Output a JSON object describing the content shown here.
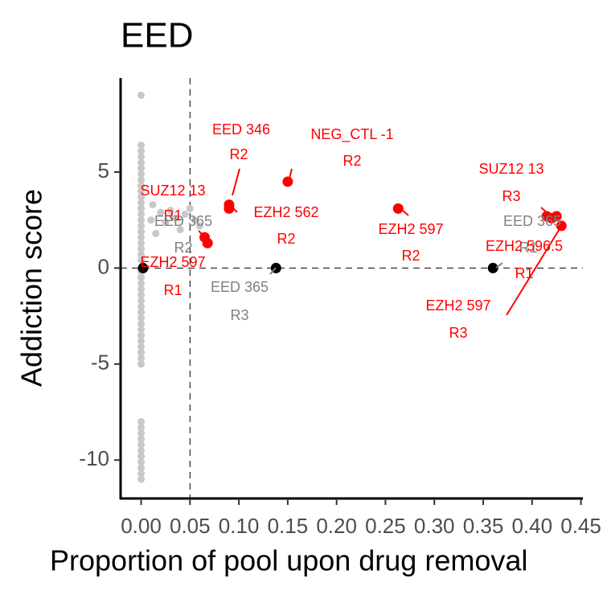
{
  "chart_data": {
    "type": "scatter",
    "title": "EED",
    "x_label": "Proportion of pool upon drug removal",
    "y_label": "Addiction score",
    "xlim": [
      -0.021,
      0.452
    ],
    "ylim": [
      -12,
      9.9
    ],
    "xticks": [
      {
        "value": 0,
        "label": "0.00"
      },
      {
        "value": 0.05,
        "label": "0.05"
      },
      {
        "value": 0.1,
        "label": "0.10"
      },
      {
        "value": 0.15,
        "label": "0.15"
      },
      {
        "value": 0.2,
        "label": "0.20"
      },
      {
        "value": 0.25,
        "label": "0.25"
      },
      {
        "value": 0.3,
        "label": "0.30"
      },
      {
        "value": 0.35,
        "label": "0.35"
      },
      {
        "value": 0.4,
        "label": "0.40"
      },
      {
        "value": 0.45,
        "label": "0.45"
      }
    ],
    "yticks": [
      -10,
      -5,
      0,
      5
    ],
    "reference_lines": {
      "x": 0.05,
      "y": 0
    },
    "series": [
      {
        "color": "#c8c8c8",
        "x": [
          0,
          0,
          0,
          0,
          0,
          0,
          0,
          0,
          0,
          0,
          0,
          0,
          0,
          0,
          0,
          0,
          0,
          0,
          0,
          0,
          0,
          0,
          0,
          0,
          0,
          0,
          0,
          0,
          0,
          0,
          0,
          0,
          0,
          0,
          0,
          0,
          0,
          0,
          0,
          0,
          0,
          0,
          0,
          0,
          0,
          0,
          0,
          0,
          0,
          0,
          0.01,
          0.015,
          0.02,
          0.025,
          0.03,
          0.035,
          0.045,
          0.05,
          0.055,
          0.06,
          0.04,
          0.012
        ],
        "values": [
          9,
          6.4,
          6.1,
          5.8,
          5.5,
          5.2,
          4.9,
          4.6,
          4.3,
          4,
          3.7,
          3.4,
          3.1,
          2.8,
          2.5,
          2.2,
          1.9,
          1.6,
          1.3,
          1,
          0.7,
          0.4,
          -0.2,
          -0.5,
          -0.8,
          -1.1,
          -1.4,
          -1.7,
          -2,
          -2.3,
          -2.6,
          -2.9,
          -3.2,
          -3.5,
          -3.8,
          -4.1,
          -4.4,
          -4.7,
          -5,
          -8,
          -8.3,
          -8.6,
          -8.9,
          -9.2,
          -9.5,
          -9.8,
          -10.1,
          -10.4,
          -10.7,
          -11,
          2.5,
          1.8,
          2.9,
          2.4,
          3,
          2.6,
          2.8,
          3.1,
          2.5,
          2.2,
          2,
          3.3
        ]
      },
      {
        "color": "#000000",
        "x": [
          0.002,
          0.138,
          0.36
        ],
        "values": [
          0,
          0,
          0
        ]
      },
      {
        "color": "#ff0000",
        "x": [
          0.065,
          0.068,
          0.09,
          0.09,
          0.15,
          0.263,
          0.415,
          0.42,
          0.425,
          0.43
        ],
        "values": [
          1.6,
          1.3,
          3.3,
          3.1,
          4.5,
          3.1,
          2.7,
          2.6,
          2.7,
          2.2
        ]
      }
    ],
    "annotations": [
      {
        "lines": [
          "EED 346",
          "R2"
        ],
        "color": "#ff0000"
      },
      {
        "lines": [
          "NEG_CTL -1",
          "R2"
        ],
        "color": "#ff0000"
      },
      {
        "lines": [
          "SUZ12 13",
          "R1"
        ],
        "color": "#ff0000"
      },
      {
        "lines": [
          "EED 365",
          "R2"
        ],
        "color": "#808080"
      },
      {
        "lines": [
          "EZH2 562",
          "R2"
        ],
        "color": "#ff0000"
      },
      {
        "lines": [
          "EZH2 597",
          "R1"
        ],
        "color": "#ff0000"
      },
      {
        "lines": [
          "EZH2 597",
          "R2"
        ],
        "color": "#ff0000"
      },
      {
        "lines": [
          "EED 365",
          "R3"
        ],
        "color": "#808080"
      },
      {
        "lines": [
          "SUZ12 13",
          "R3"
        ],
        "color": "#ff0000"
      },
      {
        "lines": [
          "EED 365",
          "R1"
        ],
        "color": "#808080"
      },
      {
        "lines": [
          "EZH2 596.5",
          "R1"
        ],
        "color": "#ff0000"
      },
      {
        "lines": [
          "EZH2 597",
          "R3"
        ],
        "color": "#ff0000"
      }
    ]
  }
}
